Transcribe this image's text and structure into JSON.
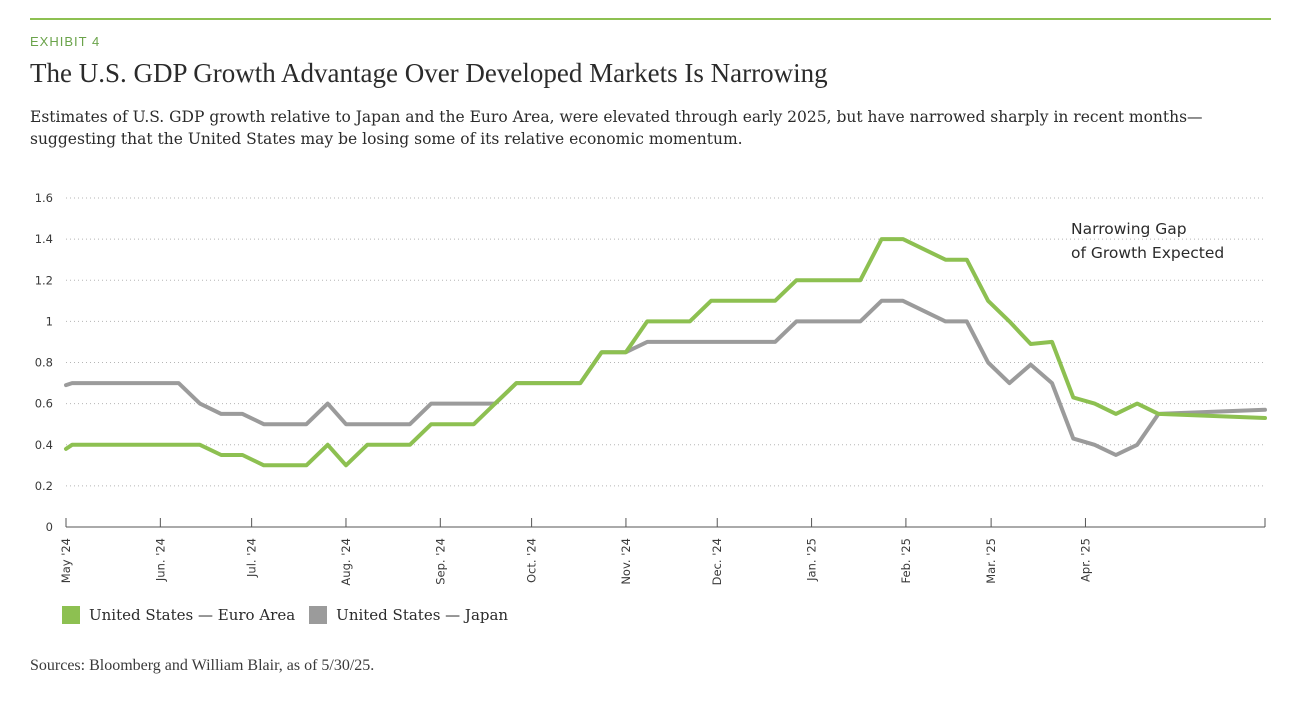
{
  "header": {
    "exhibit": "EXHIBIT 4",
    "title": "The U.S. GDP Growth Advantage Over Developed Markets Is Narrowing",
    "subtitle": "Estimates of U.S. GDP growth relative to Japan and the Euro Area, were elevated through early 2025, but have narrowed sharply in recent months—suggesting that the United States may be losing some of its relative economic momentum."
  },
  "annotation": {
    "line1": "Narrowing Gap",
    "line2": "of Growth Expected"
  },
  "source": "Sources: Bloomberg and William Blair, as of 5/30/25.",
  "colors": {
    "accent": "#8dc051",
    "euro": "#8dc051",
    "japan": "#9b9b9b",
    "text": "#2b2b2b"
  },
  "chart_data": {
    "type": "line",
    "title": "The U.S. GDP Growth Advantage Over Developed Markets Is Narrowing",
    "ylim": [
      0,
      1.6
    ],
    "yticks": [
      0,
      0.2,
      0.4,
      0.6,
      0.8,
      1,
      1.2,
      1.4,
      1.6
    ],
    "ytick_labels": [
      "0",
      "0.2",
      "0.4",
      "0.6",
      "0.8",
      "1",
      "1.2",
      "1.4",
      "1.6"
    ],
    "xlim": [
      "2024-05-01",
      "2025-05-30"
    ],
    "xticks": [
      {
        "date": "2024-05-01",
        "label": "May '24"
      },
      {
        "date": "2024-06-01",
        "label": "Jun. '24"
      },
      {
        "date": "2024-07-01",
        "label": "Jul. '24"
      },
      {
        "date": "2024-08-01",
        "label": "Aug. '24"
      },
      {
        "date": "2024-09-01",
        "label": "Sep. '24"
      },
      {
        "date": "2024-10-01",
        "label": "Oct. '24"
      },
      {
        "date": "2024-11-01",
        "label": "Nov. '24"
      },
      {
        "date": "2024-12-01",
        "label": "Dec. '24"
      },
      {
        "date": "2025-01-01",
        "label": "Jan. '25"
      },
      {
        "date": "2025-02-01",
        "label": "Feb. '25"
      },
      {
        "date": "2025-03-01",
        "label": "Mar. '25"
      },
      {
        "date": "2025-04-01",
        "label": "Apr. '25"
      }
    ],
    "grid": "horizontal-dotted",
    "legend_position": "bottom-left",
    "series": [
      {
        "name": "United States — Euro Area",
        "color": "#8dc051",
        "points": [
          [
            "2024-05-01",
            0.38
          ],
          [
            "2024-05-03",
            0.4
          ],
          [
            "2024-06-14",
            0.4
          ],
          [
            "2024-06-21",
            0.35
          ],
          [
            "2024-06-28",
            0.35
          ],
          [
            "2024-07-05",
            0.3
          ],
          [
            "2024-07-19",
            0.3
          ],
          [
            "2024-07-26",
            0.4
          ],
          [
            "2024-08-01",
            0.3
          ],
          [
            "2024-08-08",
            0.4
          ],
          [
            "2024-08-22",
            0.4
          ],
          [
            "2024-08-29",
            0.5
          ],
          [
            "2024-09-12",
            0.5
          ],
          [
            "2024-09-19",
            0.6
          ],
          [
            "2024-09-26",
            0.7
          ],
          [
            "2024-10-17",
            0.7
          ],
          [
            "2024-10-24",
            0.85
          ],
          [
            "2024-11-01",
            0.85
          ],
          [
            "2024-11-08",
            1.0
          ],
          [
            "2024-11-22",
            1.0
          ],
          [
            "2024-11-29",
            1.1
          ],
          [
            "2024-12-20",
            1.1
          ],
          [
            "2024-12-27",
            1.2
          ],
          [
            "2025-01-17",
            1.2
          ],
          [
            "2025-01-24",
            1.4
          ],
          [
            "2025-01-31",
            1.4
          ],
          [
            "2025-02-14",
            1.3
          ],
          [
            "2025-02-21",
            1.3
          ],
          [
            "2025-02-28",
            1.1
          ],
          [
            "2025-03-07",
            1.0
          ],
          [
            "2025-03-14",
            0.89
          ],
          [
            "2025-03-21",
            0.9
          ],
          [
            "2025-03-28",
            0.63
          ],
          [
            "2025-04-04",
            0.6
          ],
          [
            "2025-04-11",
            0.55
          ],
          [
            "2025-04-18",
            0.6
          ],
          [
            "2025-04-25",
            0.55
          ],
          [
            "2025-05-30",
            0.53
          ]
        ]
      },
      {
        "name": "United States — Japan",
        "color": "#9b9b9b",
        "points": [
          [
            "2024-05-01",
            0.69
          ],
          [
            "2024-05-03",
            0.7
          ],
          [
            "2024-06-07",
            0.7
          ],
          [
            "2024-06-14",
            0.6
          ],
          [
            "2024-06-21",
            0.55
          ],
          [
            "2024-06-28",
            0.55
          ],
          [
            "2024-07-05",
            0.5
          ],
          [
            "2024-07-19",
            0.5
          ],
          [
            "2024-07-26",
            0.6
          ],
          [
            "2024-08-01",
            0.5
          ],
          [
            "2024-08-22",
            0.5
          ],
          [
            "2024-08-29",
            0.6
          ],
          [
            "2024-09-19",
            0.6
          ],
          [
            "2024-09-26",
            0.7
          ],
          [
            "2024-10-17",
            0.7
          ],
          [
            "2024-10-24",
            0.85
          ],
          [
            "2024-11-01",
            0.85
          ],
          [
            "2024-11-08",
            0.9
          ],
          [
            "2024-12-20",
            0.9
          ],
          [
            "2024-12-27",
            1.0
          ],
          [
            "2025-01-17",
            1.0
          ],
          [
            "2025-01-24",
            1.1
          ],
          [
            "2025-01-31",
            1.1
          ],
          [
            "2025-02-14",
            1.0
          ],
          [
            "2025-02-21",
            1.0
          ],
          [
            "2025-02-28",
            0.8
          ],
          [
            "2025-03-07",
            0.7
          ],
          [
            "2025-03-14",
            0.79
          ],
          [
            "2025-03-21",
            0.7
          ],
          [
            "2025-03-28",
            0.43
          ],
          [
            "2025-04-04",
            0.4
          ],
          [
            "2025-04-11",
            0.35
          ],
          [
            "2025-04-18",
            0.4
          ],
          [
            "2025-04-25",
            0.55
          ],
          [
            "2025-05-30",
            0.57
          ]
        ]
      }
    ]
  }
}
